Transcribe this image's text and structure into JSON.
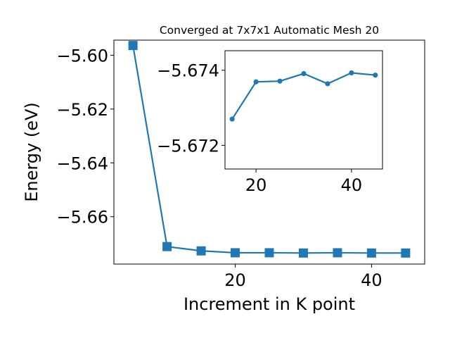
{
  "figure": {
    "title": "Converged at 7x7x1 Automatic Mesh 20",
    "background": "#ffffff",
    "line_color": "#1f77b4"
  },
  "chart_data": [
    {
      "type": "line",
      "role": "main",
      "title": "Converged at 7x7x1 Automatic Mesh 20",
      "xlabel": "Increment in K point",
      "ylabel": "Energy (eV)",
      "xlim": [
        2.2,
        47.8
      ],
      "ylim": [
        -5.6776,
        -5.5944
      ],
      "x_ticks": [
        20,
        40
      ],
      "x_tick_labels": [
        "20",
        "40"
      ],
      "y_ticks": [
        -5.6,
        -5.62,
        -5.64,
        -5.66
      ],
      "y_tick_labels": [
        "−5.60",
        "−5.62",
        "−5.64",
        "−5.66"
      ],
      "grid": false,
      "marker": "square",
      "series": [
        {
          "color": "#1f77b4",
          "x": [
            5,
            10,
            15,
            20,
            25,
            30,
            35,
            40,
            45
          ],
          "y": [
            -5.5964,
            -5.6711,
            -5.6727,
            -5.6734,
            -5.6734,
            -5.6735,
            -5.6734,
            -5.6735,
            -5.6735
          ]
        }
      ]
    },
    {
      "type": "line",
      "role": "inset",
      "xlim": [
        13.5,
        46.5
      ],
      "ylim": [
        -5.67137,
        -5.67452
      ],
      "x_ticks": [
        20,
        40
      ],
      "x_tick_labels": [
        "20",
        "40"
      ],
      "y_ticks": [
        -5.674,
        -5.672
      ],
      "y_tick_labels": [
        "−5.674",
        "−5.672"
      ],
      "grid": false,
      "marker": "circle",
      "series": [
        {
          "color": "#1f77b4",
          "x": [
            15,
            20,
            25,
            30,
            35,
            40,
            45
          ],
          "y": [
            -5.6727,
            -5.67369,
            -5.67371,
            -5.67391,
            -5.67364,
            -5.67393,
            -5.67387
          ]
        }
      ]
    }
  ]
}
